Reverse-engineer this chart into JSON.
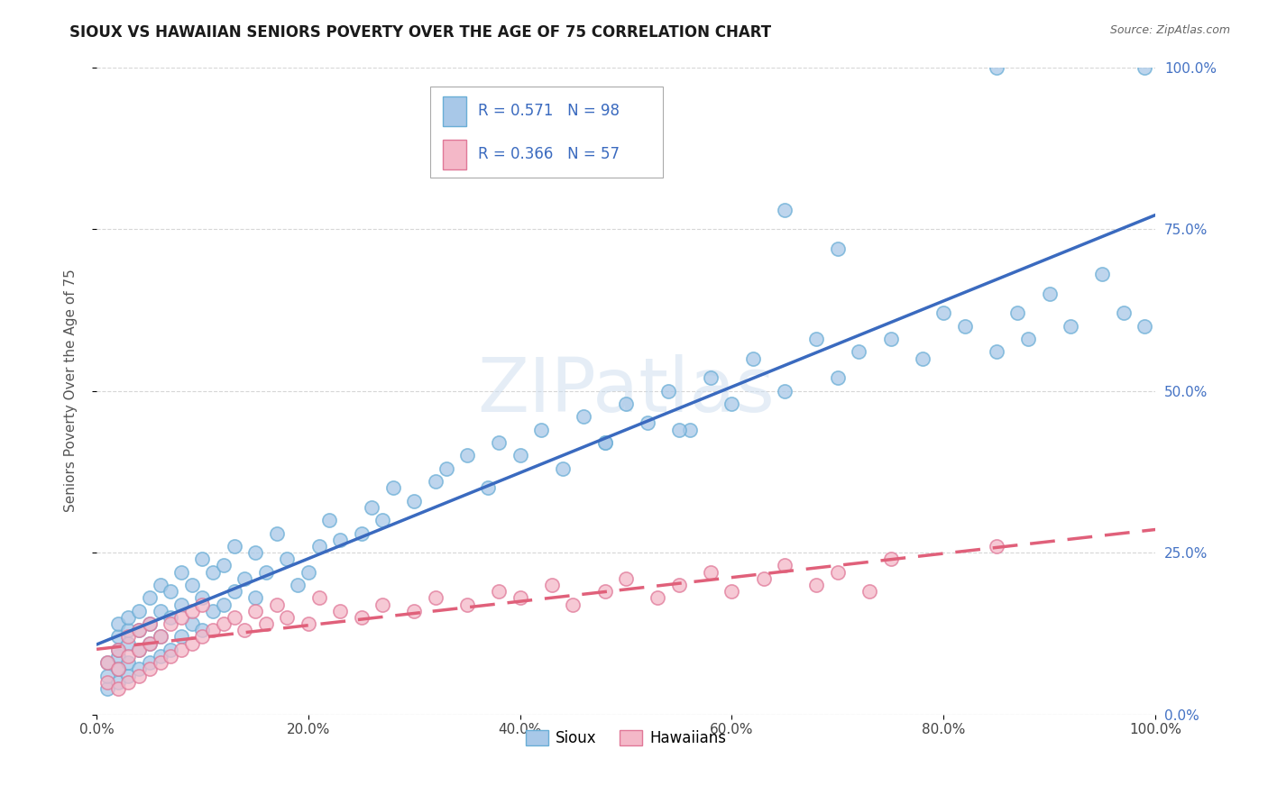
{
  "title": "SIOUX VS HAWAIIAN SENIORS POVERTY OVER THE AGE OF 75 CORRELATION CHART",
  "source": "Source: ZipAtlas.com",
  "ylabel": "Seniors Poverty Over the Age of 75",
  "background_color": "#ffffff",
  "watermark_text": "ZIPatlas",
  "sioux_color": "#a8c8e8",
  "sioux_edge_color": "#6aaed6",
  "hawaiian_color": "#f4b8c8",
  "hawaiian_edge_color": "#e07898",
  "sioux_line_color": "#3a6abf",
  "hawaiian_line_color": "#e0607a",
  "sioux_R": 0.571,
  "sioux_N": 98,
  "hawaiian_R": 0.366,
  "hawaiian_N": 57,
  "xlim": [
    0,
    1.0
  ],
  "ylim": [
    0,
    1.0
  ],
  "sioux_x": [
    0.01,
    0.01,
    0.01,
    0.02,
    0.02,
    0.02,
    0.02,
    0.02,
    0.02,
    0.03,
    0.03,
    0.03,
    0.03,
    0.03,
    0.04,
    0.04,
    0.04,
    0.04,
    0.05,
    0.05,
    0.05,
    0.05,
    0.06,
    0.06,
    0.06,
    0.06,
    0.07,
    0.07,
    0.07,
    0.08,
    0.08,
    0.08,
    0.09,
    0.09,
    0.1,
    0.1,
    0.1,
    0.11,
    0.11,
    0.12,
    0.12,
    0.13,
    0.13,
    0.14,
    0.15,
    0.15,
    0.16,
    0.17,
    0.18,
    0.19,
    0.2,
    0.21,
    0.22,
    0.23,
    0.25,
    0.26,
    0.27,
    0.28,
    0.3,
    0.32,
    0.33,
    0.35,
    0.37,
    0.38,
    0.4,
    0.42,
    0.44,
    0.46,
    0.48,
    0.5,
    0.52,
    0.54,
    0.56,
    0.58,
    0.6,
    0.62,
    0.65,
    0.68,
    0.7,
    0.72,
    0.75,
    0.78,
    0.8,
    0.82,
    0.85,
    0.87,
    0.88,
    0.9,
    0.92,
    0.95,
    0.97,
    0.99,
    0.99,
    0.7,
    0.65,
    0.55,
    0.48,
    0.85
  ],
  "sioux_y": [
    0.04,
    0.06,
    0.08,
    0.05,
    0.07,
    0.09,
    0.1,
    0.12,
    0.14,
    0.06,
    0.08,
    0.11,
    0.13,
    0.15,
    0.07,
    0.1,
    0.13,
    0.16,
    0.08,
    0.11,
    0.14,
    0.18,
    0.09,
    0.12,
    0.16,
    0.2,
    0.1,
    0.15,
    0.19,
    0.12,
    0.17,
    0.22,
    0.14,
    0.2,
    0.13,
    0.18,
    0.24,
    0.16,
    0.22,
    0.17,
    0.23,
    0.19,
    0.26,
    0.21,
    0.18,
    0.25,
    0.22,
    0.28,
    0.24,
    0.2,
    0.22,
    0.26,
    0.3,
    0.27,
    0.28,
    0.32,
    0.3,
    0.35,
    0.33,
    0.36,
    0.38,
    0.4,
    0.35,
    0.42,
    0.4,
    0.44,
    0.38,
    0.46,
    0.42,
    0.48,
    0.45,
    0.5,
    0.44,
    0.52,
    0.48,
    0.55,
    0.5,
    0.58,
    0.52,
    0.56,
    0.58,
    0.55,
    0.62,
    0.6,
    0.56,
    0.62,
    0.58,
    0.65,
    0.6,
    0.68,
    0.62,
    0.6,
    1.0,
    0.72,
    0.78,
    0.44,
    0.42,
    1.0
  ],
  "hawaiian_x": [
    0.01,
    0.01,
    0.02,
    0.02,
    0.02,
    0.03,
    0.03,
    0.03,
    0.04,
    0.04,
    0.04,
    0.05,
    0.05,
    0.05,
    0.06,
    0.06,
    0.07,
    0.07,
    0.08,
    0.08,
    0.09,
    0.09,
    0.1,
    0.1,
    0.11,
    0.12,
    0.13,
    0.14,
    0.15,
    0.16,
    0.17,
    0.18,
    0.2,
    0.21,
    0.23,
    0.25,
    0.27,
    0.3,
    0.32,
    0.35,
    0.38,
    0.4,
    0.43,
    0.45,
    0.48,
    0.5,
    0.53,
    0.55,
    0.58,
    0.6,
    0.63,
    0.65,
    0.68,
    0.7,
    0.73,
    0.75,
    0.85
  ],
  "hawaiian_y": [
    0.05,
    0.08,
    0.04,
    0.07,
    0.1,
    0.05,
    0.09,
    0.12,
    0.06,
    0.1,
    0.13,
    0.07,
    0.11,
    0.14,
    0.08,
    0.12,
    0.09,
    0.14,
    0.1,
    0.15,
    0.11,
    0.16,
    0.12,
    0.17,
    0.13,
    0.14,
    0.15,
    0.13,
    0.16,
    0.14,
    0.17,
    0.15,
    0.14,
    0.18,
    0.16,
    0.15,
    0.17,
    0.16,
    0.18,
    0.17,
    0.19,
    0.18,
    0.2,
    0.17,
    0.19,
    0.21,
    0.18,
    0.2,
    0.22,
    0.19,
    0.21,
    0.23,
    0.2,
    0.22,
    0.19,
    0.24,
    0.26
  ]
}
